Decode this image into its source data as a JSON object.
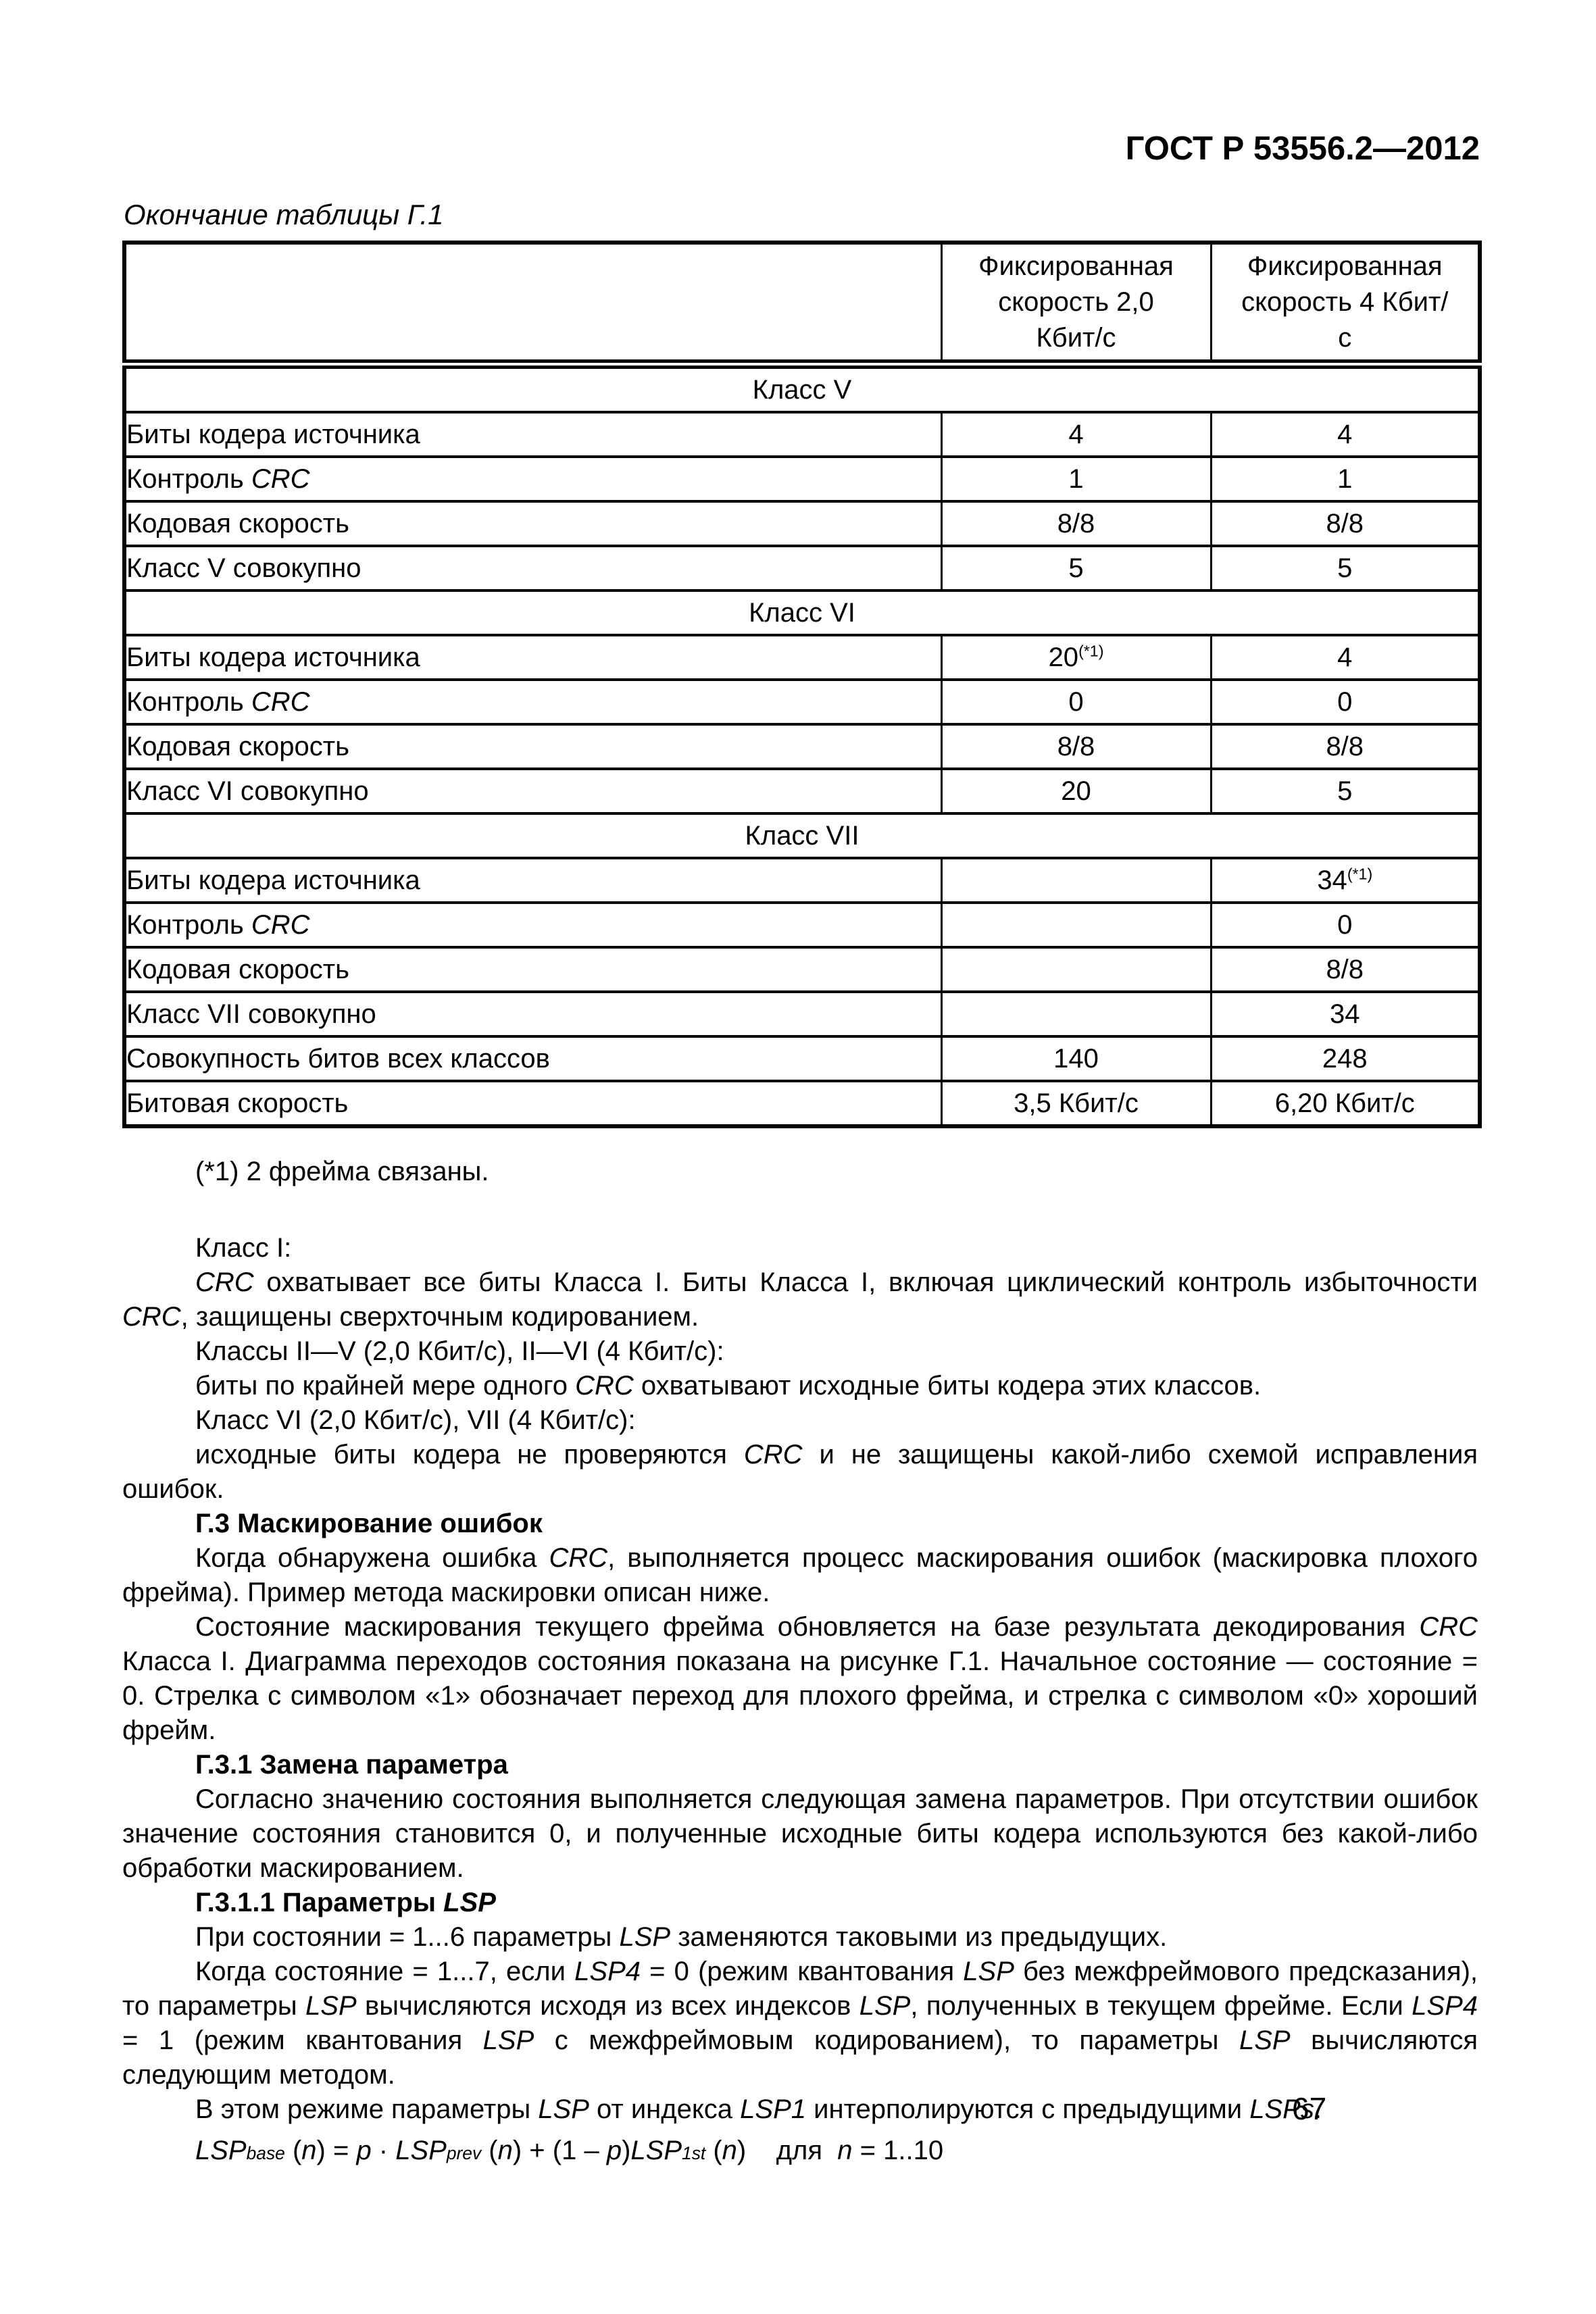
{
  "colors": {
    "text": "#000000",
    "background": "#ffffff",
    "border": "#000000"
  },
  "page": {
    "header": "ГОСТ Р 53556.2—2012",
    "number": "67"
  },
  "table": {
    "caption": "Окончание таблицы Г.1",
    "col2_header": "Фиксированная скорость 2,0 Кбит/с",
    "col4_header": "Фиксированная скорость 4 Кбит/с",
    "rows": [
      {
        "type": "section",
        "segs": [
          {
            "t": "Класс V"
          }
        ]
      },
      {
        "type": "data",
        "label": [
          {
            "t": "Биты кодера источника"
          }
        ],
        "c2": [
          {
            "t": "4"
          }
        ],
        "c4": [
          {
            "t": "4"
          }
        ]
      },
      {
        "type": "data",
        "label": [
          {
            "t": "Контроль "
          },
          {
            "t": "CRC",
            "i": true
          }
        ],
        "c2": [
          {
            "t": "1"
          }
        ],
        "c4": [
          {
            "t": "1"
          }
        ]
      },
      {
        "type": "data",
        "label": [
          {
            "t": "Кодовая скорость"
          }
        ],
        "c2": [
          {
            "t": "8/8"
          }
        ],
        "c4": [
          {
            "t": "8/8"
          }
        ]
      },
      {
        "type": "data",
        "label": [
          {
            "t": "Класс V совокупно"
          }
        ],
        "c2": [
          {
            "t": "5"
          }
        ],
        "c4": [
          {
            "t": "5"
          }
        ]
      },
      {
        "type": "section",
        "segs": [
          {
            "t": "Класс VI"
          }
        ]
      },
      {
        "type": "data",
        "label": [
          {
            "t": "Биты кодера источника"
          }
        ],
        "c2": [
          {
            "t": "20"
          },
          {
            "t": "(*1)",
            "sup": true
          }
        ],
        "c4": [
          {
            "t": "4"
          }
        ]
      },
      {
        "type": "data",
        "label": [
          {
            "t": "Контроль "
          },
          {
            "t": "CRC",
            "i": true
          }
        ],
        "c2": [
          {
            "t": "0"
          }
        ],
        "c4": [
          {
            "t": "0"
          }
        ]
      },
      {
        "type": "data",
        "label": [
          {
            "t": "Кодовая скорость"
          }
        ],
        "c2": [
          {
            "t": "8/8"
          }
        ],
        "c4": [
          {
            "t": "8/8"
          }
        ]
      },
      {
        "type": "data",
        "label": [
          {
            "t": "Класс VI совокупно"
          }
        ],
        "c2": [
          {
            "t": "20"
          }
        ],
        "c4": [
          {
            "t": "5"
          }
        ]
      },
      {
        "type": "section",
        "segs": [
          {
            "t": "Класс VII"
          }
        ]
      },
      {
        "type": "data",
        "label": [
          {
            "t": "Биты кодера источника"
          }
        ],
        "c2": [],
        "c4": [
          {
            "t": "34"
          },
          {
            "t": "(*1)",
            "sup": true
          }
        ]
      },
      {
        "type": "data",
        "label": [
          {
            "t": "Контроль "
          },
          {
            "t": "CRC",
            "i": true
          }
        ],
        "c2": [],
        "c4": [
          {
            "t": "0"
          }
        ]
      },
      {
        "type": "data",
        "label": [
          {
            "t": "Кодовая скорость"
          }
        ],
        "c2": [],
        "c4": [
          {
            "t": "8/8"
          }
        ]
      },
      {
        "type": "data",
        "label": [
          {
            "t": "Класс VII совокупно"
          }
        ],
        "c2": [],
        "c4": [
          {
            "t": "34"
          }
        ]
      },
      {
        "type": "data",
        "label": [
          {
            "t": "Совокупность битов всех классов"
          }
        ],
        "c2": [
          {
            "t": "140"
          }
        ],
        "c4": [
          {
            "t": "248"
          }
        ]
      },
      {
        "type": "data",
        "label": [
          {
            "t": "Битовая скорость"
          }
        ],
        "c2": [
          {
            "t": "3,5 Кбит/с"
          }
        ],
        "c4": [
          {
            "t": "6,20 Кбит/с"
          }
        ]
      }
    ]
  },
  "footnote": "(*1) 2 фрейма связаны.",
  "paragraphs": [
    {
      "indent": true,
      "segs": [
        {
          "t": "Класс I:"
        }
      ]
    },
    {
      "indent": true,
      "segs": [
        {
          "t": "CRC",
          "i": true
        },
        {
          "t": " охватывает все биты Класса I. Биты Класса I, включая циклический контроль избыточности "
        },
        {
          "t": "CRC",
          "i": true
        },
        {
          "t": ", защищены сверхточным кодированием."
        }
      ]
    },
    {
      "indent": true,
      "segs": [
        {
          "t": "Классы II—V (2,0 Кбит/с), II—VI (4 Кбит/с):"
        }
      ]
    },
    {
      "indent": true,
      "segs": [
        {
          "t": "биты по крайней мере одного "
        },
        {
          "t": "CRC",
          "i": true
        },
        {
          "t": " охватывают исходные биты кодера этих классов."
        }
      ]
    },
    {
      "indent": true,
      "segs": [
        {
          "t": "Класс VI (2,0 Кбит/с), VII (4 Кбит/с):"
        }
      ]
    },
    {
      "indent": true,
      "segs": [
        {
          "t": "исходные биты кодера не проверяются "
        },
        {
          "t": "CRC",
          "i": true
        },
        {
          "t": " и не защищены какой-либо схемой исправления ошибок."
        }
      ]
    },
    {
      "indent": true,
      "bold": true,
      "segs": [
        {
          "t": "Г.3 Маскирование ошибок"
        }
      ]
    },
    {
      "indent": true,
      "segs": [
        {
          "t": "Когда обнаружена ошибка "
        },
        {
          "t": "CRC",
          "i": true
        },
        {
          "t": ", выполняется процесс маскирования ошибок (маскировка плохого фрейма). Пример метода маскировки описан ниже."
        }
      ]
    },
    {
      "indent": true,
      "segs": [
        {
          "t": "Состояние маскирования текущего фрейма обновляется на базе результата декодирования "
        },
        {
          "t": "CRC",
          "i": true
        },
        {
          "t": " Класса I. Диаграмма переходов состояния показана на рисунке Г.1. Начальное состояние — состояние = 0. Стрелка с символом «1» обозначает переход для плохого фрейма, и стрелка с символом «0» хороший фрейм."
        }
      ]
    },
    {
      "indent": true,
      "bold": true,
      "segs": [
        {
          "t": "Г.3.1 Замена параметра"
        }
      ]
    },
    {
      "indent": true,
      "segs": [
        {
          "t": "Согласно значению состояния выполняется следующая замена параметров. При отсутствии ошибок значение состояния становится 0, и полученные исходные биты кодера используются без какой-либо обработки маскированием."
        }
      ]
    },
    {
      "indent": true,
      "bold": true,
      "segs": [
        {
          "t": "Г.3.1.1 Параметры "
        },
        {
          "t": "LSP",
          "i": true
        }
      ]
    },
    {
      "indent": true,
      "segs": [
        {
          "t": "При состоянии = 1...6 параметры "
        },
        {
          "t": "LSP",
          "i": true
        },
        {
          "t": " заменяются таковыми из предыдущих."
        }
      ]
    },
    {
      "indent": true,
      "segs": [
        {
          "t": "Когда состояние = 1...7, если "
        },
        {
          "t": "LSP4",
          "i": true
        },
        {
          "t": " = 0 (режим квантования "
        },
        {
          "t": "LSP",
          "i": true
        },
        {
          "t": " без межфреймового предсказания), то параметры "
        },
        {
          "t": "LSP",
          "i": true
        },
        {
          "t": " вычисляются исходя из всех индексов "
        },
        {
          "t": "LSP",
          "i": true
        },
        {
          "t": ", полученных в текущем фрейме. Если "
        },
        {
          "t": "LSP4",
          "i": true
        },
        {
          "t": " = 1 (режим квантования "
        },
        {
          "t": "LSP",
          "i": true
        },
        {
          "t": " с межфреймовым кодированием), то параметры "
        },
        {
          "t": "LSP",
          "i": true
        },
        {
          "t": " вычисляются следующим методом."
        }
      ]
    },
    {
      "indent": true,
      "segs": [
        {
          "t": "В этом режиме параметры "
        },
        {
          "t": "LSP",
          "i": true
        },
        {
          "t": " от индекса "
        },
        {
          "t": "LSP1",
          "i": true
        },
        {
          "t": " интерполируются с предыдущими "
        },
        {
          "t": "LSPs",
          "i": true
        },
        {
          "t": "."
        }
      ]
    },
    {
      "indent": true,
      "formula": true,
      "segs": [
        {
          "t": "LSP",
          "i": true
        },
        {
          "t": "base",
          "i": true,
          "sub": true
        },
        {
          "t": " ("
        },
        {
          "t": "n",
          "i": true
        },
        {
          "t": ") = "
        },
        {
          "t": "p",
          "i": true
        },
        {
          "t": " · "
        },
        {
          "t": "LSP",
          "i": true
        },
        {
          "t": "prev",
          "i": true,
          "sub": true
        },
        {
          "t": " ("
        },
        {
          "t": "n",
          "i": true
        },
        {
          "t": ") + (1 – "
        },
        {
          "t": "p",
          "i": true
        },
        {
          "t": ")"
        },
        {
          "t": "LSP",
          "i": true
        },
        {
          "t": "1st",
          "i": true,
          "sub": true
        },
        {
          "t": " ("
        },
        {
          "t": "n",
          "i": true
        },
        {
          "t": ")    для  "
        },
        {
          "t": "n",
          "i": true
        },
        {
          "t": " = 1..10"
        }
      ]
    }
  ]
}
